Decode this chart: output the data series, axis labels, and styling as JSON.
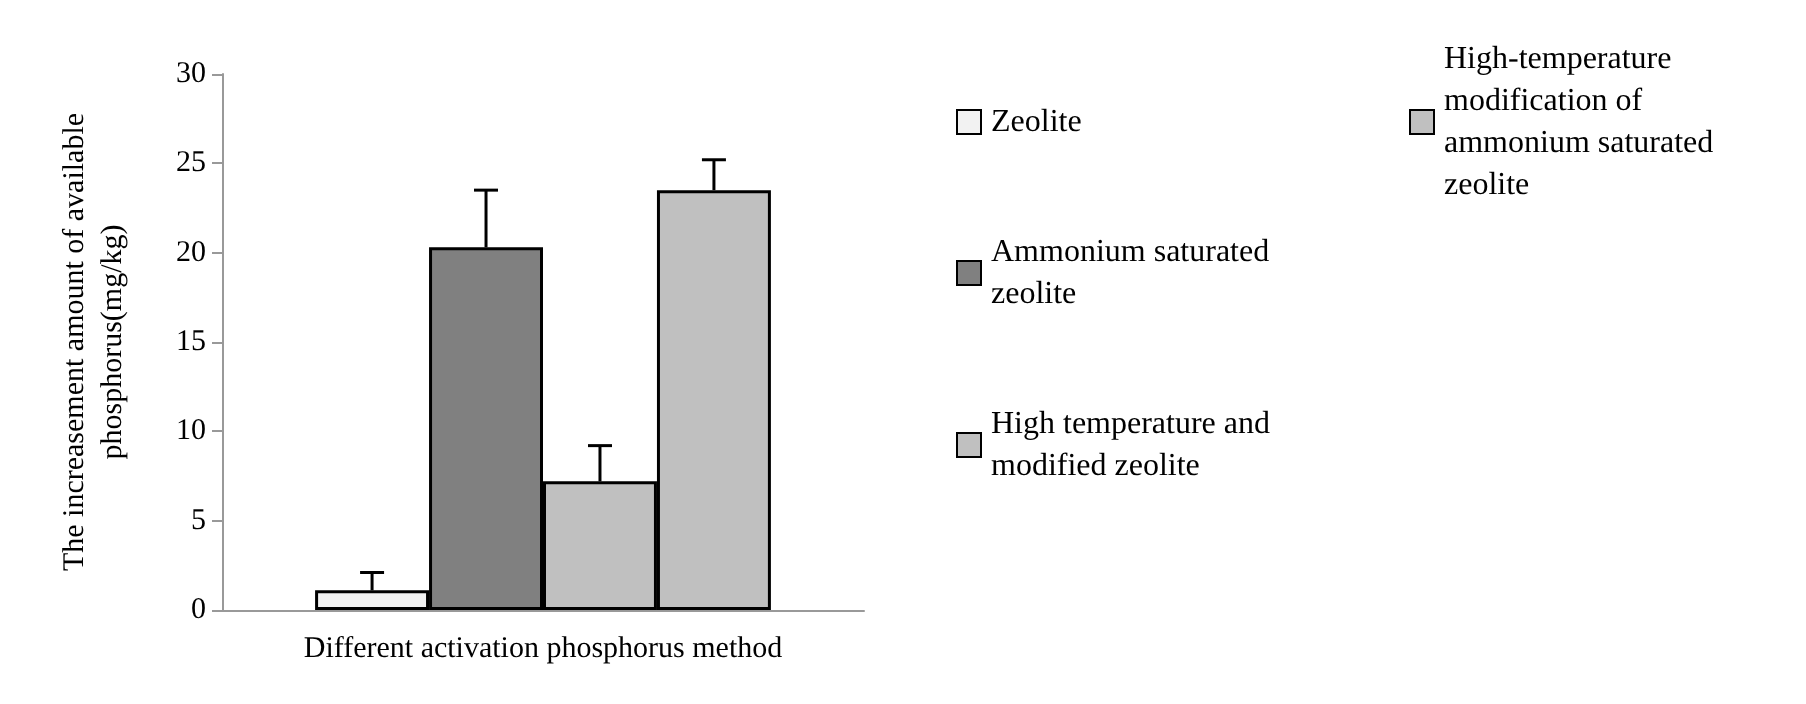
{
  "chart_data": {
    "type": "bar",
    "ylabel": "The increasement amount of available phosphorus(mg/kg)",
    "categories": [
      "Different activation phosphorus method"
    ],
    "series": [
      {
        "name": "Zeolite",
        "color": "#f2f2f2",
        "values": [
          1.1
        ],
        "errors": [
          [
            1.1,
            2.1
          ]
        ]
      },
      {
        "name": "Ammonium saturated zeolite",
        "color": "#808080",
        "values": [
          20.3
        ],
        "errors": [
          [
            20.3,
            23.5
          ]
        ]
      },
      {
        "name": "High temperature and modified zeolite",
        "color": "#c0c0c0",
        "values": [
          7.2
        ],
        "errors": [
          [
            7.2,
            9.2
          ]
        ]
      },
      {
        "name": "High-temperature modification of ammonium saturated zeolite",
        "color": "#c0c0c0",
        "values": [
          23.5
        ],
        "errors": [
          [
            23.5,
            25.2
          ]
        ]
      }
    ],
    "ylim": [
      0,
      30
    ],
    "yticks": [
      0,
      5,
      10,
      15,
      20,
      25,
      30
    ],
    "grid": false,
    "legend": "right"
  }
}
